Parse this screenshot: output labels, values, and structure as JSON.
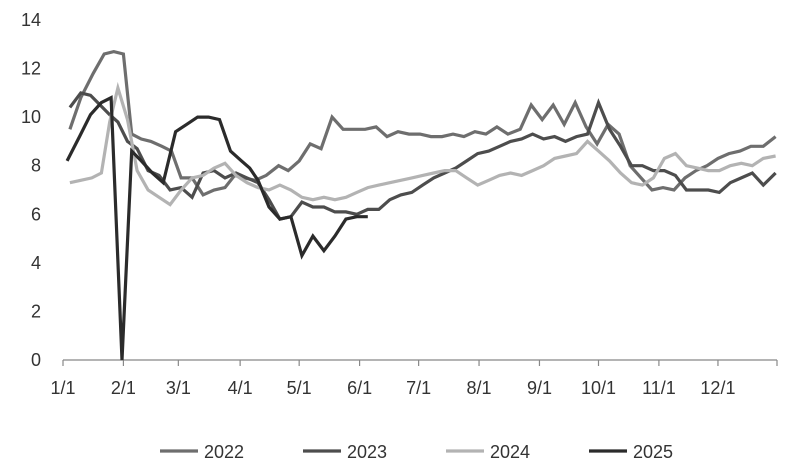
{
  "chart_data": {
    "type": "line",
    "title": "",
    "xlabel": "",
    "ylabel": "",
    "ylim": [
      0,
      14
    ],
    "yticks": [
      "0",
      "2",
      "4",
      "6",
      "8",
      "10",
      "12",
      "14"
    ],
    "xlim": [
      0,
      52
    ],
    "xticks": [
      {
        "x": 0,
        "label": "1/1"
      },
      {
        "x": 4.4,
        "label": "2/1"
      },
      {
        "x": 8.4,
        "label": "3/1"
      },
      {
        "x": 12.9,
        "label": "4/1"
      },
      {
        "x": 17.2,
        "label": "5/1"
      },
      {
        "x": 21.6,
        "label": "6/1"
      },
      {
        "x": 25.9,
        "label": "7/1"
      },
      {
        "x": 30.3,
        "label": "8/1"
      },
      {
        "x": 34.7,
        "label": "9/1"
      },
      {
        "x": 39.0,
        "label": "10/1"
      },
      {
        "x": 43.4,
        "label": "11/1"
      },
      {
        "x": 47.7,
        "label": "12/1"
      }
    ],
    "grid": false,
    "legend_position": "bottom",
    "series": [
      {
        "name": "2022",
        "color": "#6e6e6e",
        "x": [
          0.5,
          1.3,
          2.2,
          3.0,
          3.7,
          4.4,
          5.0,
          5.7,
          6.4,
          7.2,
          7.9,
          8.6,
          9.4,
          10.2,
          11.0,
          11.8,
          12.5,
          13.2,
          14.0,
          14.8,
          15.7,
          16.4,
          17.2,
          18.0,
          18.8,
          19.6,
          20.4,
          21.2,
          22.0,
          22.8,
          23.6,
          24.4,
          25.2,
          26.0,
          26.8,
          27.6,
          28.4,
          29.2,
          30.0,
          30.8,
          31.6,
          32.4,
          33.3,
          34.1,
          34.9,
          35.7,
          36.5,
          37.3,
          38.1,
          38.9,
          39.7,
          40.5,
          41.3,
          42.1,
          42.9,
          43.7,
          44.5,
          45.3,
          46.1,
          46.9,
          47.7,
          48.5,
          49.3,
          50.1,
          51.0,
          51.9
        ],
        "values": [
          9.5,
          10.8,
          11.8,
          12.6,
          12.7,
          12.6,
          9.3,
          9.1,
          9.0,
          8.8,
          8.6,
          7.5,
          7.5,
          6.8,
          7.0,
          7.1,
          7.6,
          7.5,
          7.4,
          7.6,
          8.0,
          7.8,
          8.2,
          8.9,
          8.7,
          10.0,
          9.5,
          9.5,
          9.5,
          9.6,
          9.2,
          9.4,
          9.3,
          9.3,
          9.2,
          9.2,
          9.3,
          9.2,
          9.4,
          9.3,
          9.6,
          9.3,
          9.5,
          10.5,
          9.9,
          10.5,
          9.7,
          10.6,
          9.6,
          8.9,
          9.7,
          9.3,
          8.0,
          7.5,
          7.0,
          7.1,
          7.0,
          7.5,
          7.8,
          8.0,
          8.3,
          8.5,
          8.6,
          8.8,
          8.8,
          9.2
        ]
      },
      {
        "name": "2023",
        "color": "#4d4d4d",
        "x": [
          0.5,
          1.3,
          2.0,
          2.7,
          3.4,
          4.0,
          4.7,
          5.4,
          6.2,
          7.0,
          7.8,
          8.6,
          9.4,
          10.2,
          11.0,
          11.8,
          12.6,
          13.4,
          14.2,
          15.0,
          15.8,
          16.6,
          17.4,
          18.2,
          19.0,
          19.8,
          20.6,
          21.4,
          22.2,
          23.0,
          23.8,
          24.6,
          25.4,
          26.2,
          27.0,
          27.8,
          28.6,
          29.4,
          30.2,
          31.0,
          31.8,
          32.6,
          33.4,
          34.2,
          35.0,
          35.8,
          36.6,
          37.4,
          38.2,
          39.0,
          39.8,
          40.6,
          41.4,
          42.2,
          43.0,
          43.8,
          44.6,
          45.4,
          46.2,
          47.0,
          47.8,
          48.6,
          49.4,
          50.2,
          51.0,
          51.9
        ],
        "values": [
          10.4,
          11.0,
          10.9,
          10.5,
          10.1,
          9.8,
          9.0,
          8.7,
          7.8,
          7.6,
          7.0,
          7.1,
          6.7,
          7.7,
          7.8,
          7.5,
          7.7,
          7.5,
          7.3,
          6.6,
          5.8,
          5.9,
          6.5,
          6.3,
          6.3,
          6.1,
          6.1,
          6.0,
          6.2,
          6.2,
          6.6,
          6.8,
          6.9,
          7.2,
          7.5,
          7.7,
          7.9,
          8.2,
          8.5,
          8.6,
          8.8,
          9.0,
          9.1,
          9.3,
          9.1,
          9.2,
          9.0,
          9.2,
          9.3,
          10.6,
          9.5,
          8.8,
          8.0,
          8.0,
          7.8,
          7.8,
          7.6,
          7.0,
          7.0,
          7.0,
          6.9,
          7.3,
          7.5,
          7.7,
          7.2,
          7.7
        ]
      },
      {
        "name": "2024",
        "color": "#b3b3b3",
        "x": [
          0.5,
          1.3,
          2.1,
          2.8,
          3.4,
          4.0,
          4.7,
          5.4,
          6.2,
          7.0,
          7.8,
          8.6,
          9.4,
          10.2,
          11.0,
          11.8,
          12.6,
          13.4,
          14.2,
          15.0,
          15.8,
          16.6,
          17.4,
          18.2,
          19.0,
          19.8,
          20.6,
          21.4,
          22.2,
          23.0,
          23.8,
          24.6,
          25.4,
          26.2,
          27.0,
          27.8,
          28.6,
          29.4,
          30.2,
          31.0,
          31.8,
          32.6,
          33.4,
          34.2,
          35.0,
          35.8,
          36.6,
          37.4,
          38.2,
          39.0,
          39.8,
          40.6,
          41.4,
          42.2,
          43.0,
          43.8,
          44.6,
          45.4,
          46.2,
          47.0,
          47.8,
          48.6,
          49.4,
          50.2,
          51.0,
          51.9
        ],
        "values": [
          7.3,
          7.4,
          7.5,
          7.7,
          9.8,
          11.2,
          9.9,
          7.8,
          7.0,
          6.7,
          6.4,
          7.0,
          7.5,
          7.6,
          7.9,
          8.1,
          7.6,
          7.3,
          7.1,
          7.0,
          7.2,
          7.0,
          6.7,
          6.6,
          6.7,
          6.6,
          6.7,
          6.9,
          7.1,
          7.2,
          7.3,
          7.4,
          7.5,
          7.6,
          7.7,
          7.8,
          7.8,
          7.5,
          7.2,
          7.4,
          7.6,
          7.7,
          7.6,
          7.8,
          8.0,
          8.3,
          8.4,
          8.5,
          9.0,
          8.6,
          8.2,
          7.7,
          7.3,
          7.2,
          7.5,
          8.3,
          8.5,
          8.0,
          7.9,
          7.8,
          7.8,
          8.0,
          8.1,
          8.0,
          8.3,
          8.4
        ]
      },
      {
        "name": "2025",
        "color": "#2b2b2b",
        "x": [
          0.3,
          1.2,
          2.0,
          2.8,
          3.5,
          4.3,
          5.0,
          5.7,
          6.5,
          7.3,
          8.2,
          9.0,
          9.8,
          10.6,
          11.4,
          12.2,
          13.0,
          13.6,
          14.2,
          15.0,
          15.8,
          16.6,
          17.4,
          18.2,
          19.0,
          19.8,
          20.6,
          21.4,
          22.2
        ],
        "values": [
          8.2,
          9.2,
          10.1,
          10.6,
          10.8,
          0.0,
          8.6,
          8.2,
          7.7,
          7.3,
          9.4,
          9.7,
          10.0,
          10.0,
          9.9,
          8.6,
          8.2,
          7.9,
          7.4,
          6.3,
          5.8,
          5.9,
          4.3,
          5.1,
          4.5,
          5.1,
          5.8,
          5.9,
          5.9
        ]
      }
    ]
  }
}
